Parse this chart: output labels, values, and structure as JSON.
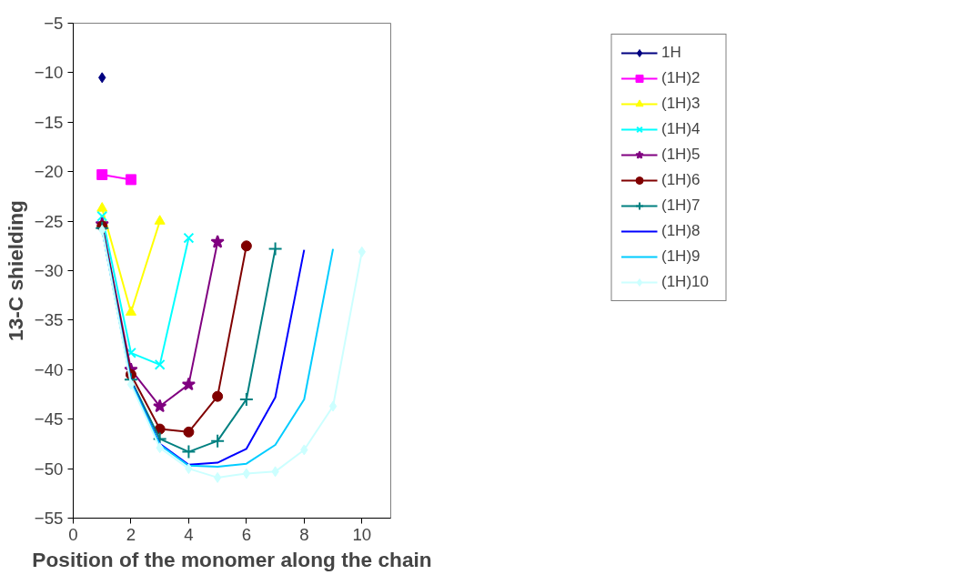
{
  "chart_data": {
    "type": "line",
    "xlabel": "Position of the monomer along the chain",
    "ylabel": "13-C shielding",
    "xlim": [
      0,
      11
    ],
    "xticks": [
      0,
      2,
      4,
      6,
      8,
      10
    ],
    "ylim": [
      -55,
      -5
    ],
    "yticks": [
      -55,
      -50,
      -45,
      -40,
      -35,
      -30,
      -25,
      -20,
      -15,
      -10,
      -5
    ],
    "grid": false,
    "legend": "right",
    "series": [
      {
        "name": "1H",
        "color": "#000080",
        "marker": "diamond",
        "x": [
          1
        ],
        "values": [
          -10.5
        ]
      },
      {
        "name": "(1H)2",
        "color": "#ff00ff",
        "marker": "square",
        "x": [
          1,
          2
        ],
        "values": [
          -20.3,
          -20.8
        ]
      },
      {
        "name": "(1H)3",
        "color": "#ffff00",
        "marker": "triangle",
        "x": [
          1,
          2,
          3
        ],
        "values": [
          -23.7,
          -34.2,
          -25
        ]
      },
      {
        "name": "(1H)4",
        "color": "#00ffff",
        "marker": "x",
        "x": [
          1,
          2,
          3,
          4
        ],
        "values": [
          -24.5,
          -38.3,
          -39.5,
          -26.7
        ]
      },
      {
        "name": "(1H)5",
        "color": "#800080",
        "marker": "star",
        "x": [
          1,
          2,
          3,
          4,
          5
        ],
        "values": [
          -25.3,
          -40,
          -43.7,
          -41.5,
          -27.1
        ]
      },
      {
        "name": "(1H)6",
        "color": "#800000",
        "marker": "circle",
        "x": [
          1,
          2,
          3,
          4,
          5,
          6
        ],
        "values": [
          -25.5,
          -40.5,
          -46,
          -46.3,
          -42.7,
          -27.5
        ]
      },
      {
        "name": "(1H)7",
        "color": "#008080",
        "marker": "cross",
        "x": [
          1,
          2,
          3,
          4,
          5,
          6,
          7
        ],
        "values": [
          -25.7,
          -41,
          -47,
          -48.3,
          -47.2,
          -43,
          -27.8
        ]
      },
      {
        "name": "(1H)8",
        "color": "#0000ff",
        "marker": "none",
        "x": [
          1,
          2,
          3,
          4,
          5,
          6,
          7,
          8
        ],
        "values": [
          -25.8,
          -41.2,
          -47.5,
          -49.6,
          -49.4,
          -48,
          -42.8,
          -27.9
        ]
      },
      {
        "name": "(1H)9",
        "color": "#00ccff",
        "marker": "none",
        "x": [
          1,
          2,
          3,
          4,
          5,
          6,
          7,
          8,
          9
        ],
        "values": [
          -25.8,
          -41.3,
          -47.6,
          -49.7,
          -49.8,
          -49.5,
          -47.6,
          -43,
          -27.8
        ]
      },
      {
        "name": "(1H)10",
        "color": "#ccffff",
        "marker": "diamond",
        "x": [
          1,
          2,
          3,
          4,
          5,
          6,
          7,
          8,
          9,
          10
        ],
        "values": [
          -25.9,
          -41.5,
          -47.9,
          -50,
          -50.9,
          -50.5,
          -50.3,
          -48.1,
          -43.7,
          -28.1
        ]
      }
    ]
  }
}
